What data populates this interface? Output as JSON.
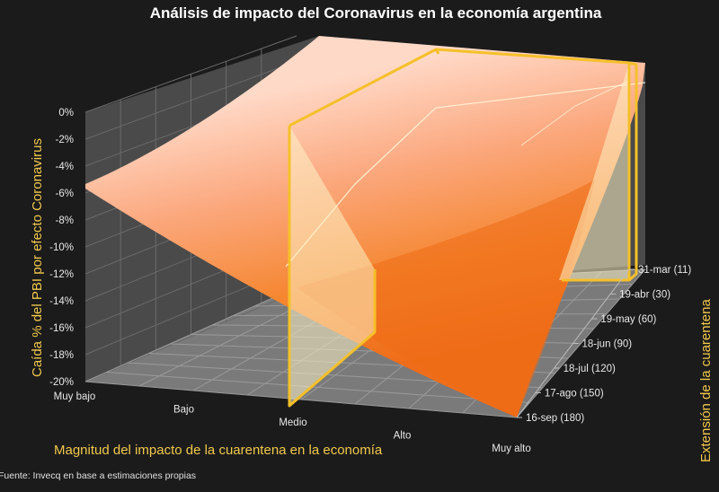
{
  "chart_data": {
    "type": "surface-3d",
    "title": "Análisis de impacto del Coronavirus en la economía argentina",
    "zlabel": "Caída % del PBI por efecto Coronavirus",
    "xlabel": "Magnitud del impacto de la cuarentena en la economía",
    "ylabel": "Extensión de la cuarentena",
    "z_ticks": [
      "0%",
      "-2%",
      "-4%",
      "-6%",
      "-8%",
      "-10%",
      "-12%",
      "-14%",
      "-16%",
      "-18%",
      "-20%"
    ],
    "zlim": [
      -20,
      0
    ],
    "x_categories": [
      "Muy bajo",
      "Bajo",
      "Medio",
      "Alto",
      "Muy alto"
    ],
    "y_categories": [
      "31-mar (11)",
      "19-abr (30)",
      "19-may (60)",
      "18-jun (90)",
      "18-jul (120)",
      "17-ago (150)",
      "16-sep (180)"
    ],
    "highlight": {
      "x_category": "Medio",
      "y_range": [
        "31-mar (11)",
        "19-abr (30)"
      ]
    },
    "surface_colors": [
      "#ffd6c4",
      "#f37420"
    ],
    "highlight_color": "#f5c02a",
    "source": "Fuente: Invecq en base a estimaciones propias"
  }
}
